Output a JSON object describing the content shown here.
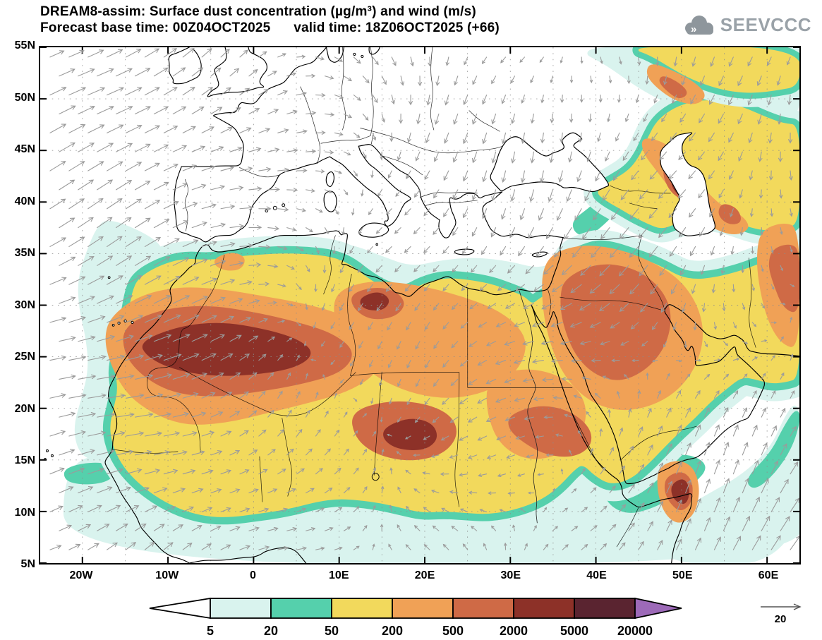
{
  "header": {
    "title_line1": "DREAM8-assim: Surface dust concentration (µg/m³) and wind (m/s)",
    "title_line2": "Forecast base time: 00Z04OCT2025      valid time: 18Z06OCT2025 (+66)"
  },
  "logo": {
    "text": "SEEVCCC"
  },
  "chart_data": {
    "type": "heatmap",
    "title": "DREAM8-assim: Surface dust concentration (µg/m³) and wind (m/s)",
    "model": "DREAM8-assim",
    "variables": [
      "Surface dust concentration (µg/m³)",
      "wind (m/s)"
    ],
    "forecast_base_time": "00Z04OCT2025",
    "valid_time": "18Z06OCT2025",
    "lead_time": "+66",
    "lat_ticks": [
      "55N",
      "50N",
      "45N",
      "40N",
      "35N",
      "30N",
      "25N",
      "20N",
      "15N",
      "10N",
      "5N"
    ],
    "lon_ticks": [
      "20W",
      "10W",
      "0",
      "10E",
      "20E",
      "30E",
      "40E",
      "50E",
      "60E"
    ],
    "colorbar": {
      "units": "µg/m³",
      "boundary_values": [
        "5",
        "20",
        "50",
        "200",
        "500",
        "2000",
        "5000",
        "20000"
      ],
      "segment_colors": [
        "#ffffff",
        "#d9f3ee",
        "#55d0ac",
        "#f2d95c",
        "#f0a156",
        "#cf6a46",
        "#8d3128",
        "#5a2430",
        "#9d6ab8"
      ]
    },
    "wind_reference": {
      "label": "20",
      "units": "m/s"
    }
  }
}
